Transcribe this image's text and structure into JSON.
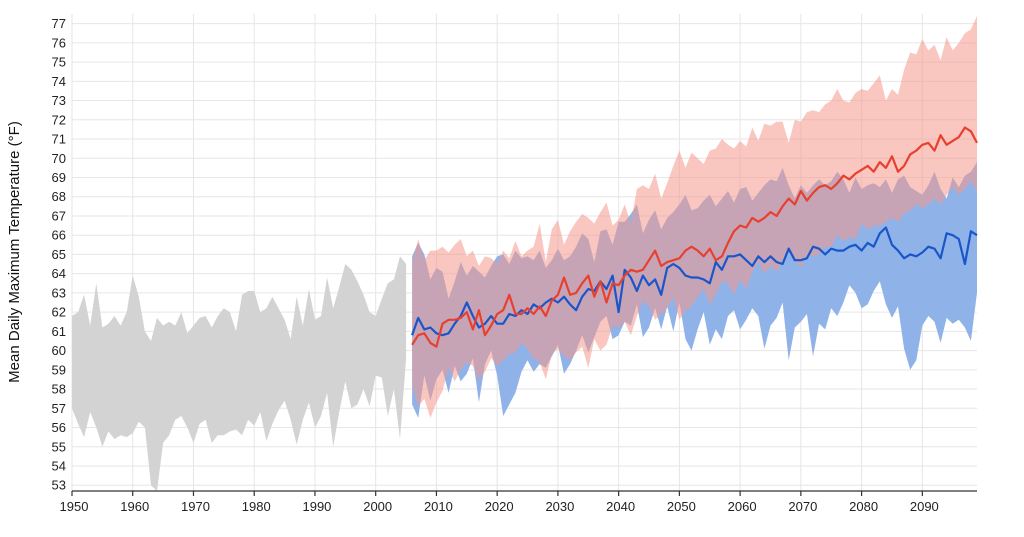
{
  "chart_data": {
    "type": "area",
    "ylabel": "Mean Daily Maximum Temperature (°F)",
    "xlim": [
      1950,
      2099
    ],
    "ylim": [
      52.7,
      77.5
    ],
    "xticks": [
      1950,
      1960,
      1970,
      1980,
      1990,
      2000,
      2010,
      2020,
      2030,
      2040,
      2050,
      2060,
      2070,
      2080,
      2090
    ],
    "yticks": [
      53,
      54,
      55,
      56,
      57,
      58,
      59,
      60,
      61,
      62,
      63,
      64,
      65,
      66,
      67,
      68,
      69,
      70,
      71,
      72,
      73,
      74,
      75,
      76,
      77
    ],
    "grid": true,
    "colors": {
      "observed_band": "#d3d3d3",
      "lower_band": "#8fb3e8",
      "lower_line": "#1a56c9",
      "higher_band": "#f4978c",
      "higher_line": "#e8402f",
      "overlap_blend": 0.55
    },
    "series": [
      {
        "role": "observed_range",
        "x": [
          1950,
          1951,
          1952,
          1953,
          1954,
          1955,
          1956,
          1957,
          1958,
          1959,
          1960,
          1961,
          1962,
          1963,
          1964,
          1965,
          1966,
          1967,
          1968,
          1969,
          1970,
          1971,
          1972,
          1973,
          1974,
          1975,
          1976,
          1977,
          1978,
          1979,
          1980,
          1981,
          1982,
          1983,
          1984,
          1985,
          1986,
          1987,
          1988,
          1989,
          1990,
          1991,
          1992,
          1993,
          1994,
          1995,
          1996,
          1997,
          1998,
          1999,
          2000,
          2001,
          2002,
          2003,
          2004,
          2005
        ],
        "low": [
          57,
          56.2,
          55.5,
          56.8,
          56,
          55,
          55.8,
          55.4,
          55.6,
          55.5,
          55.7,
          56.3,
          56,
          53,
          52.7,
          55.2,
          55.6,
          56.4,
          56.6,
          56,
          55.2,
          56.2,
          56.4,
          55.2,
          55.6,
          55.6,
          55.8,
          55.9,
          55.6,
          56.4,
          56.1,
          56.8,
          55.3,
          56.2,
          56.9,
          57.4,
          56.4,
          55.1,
          56.4,
          57.3,
          56,
          56.6,
          57.8,
          55,
          56.8,
          58.4,
          57,
          57.2,
          58,
          57.1,
          58.7,
          58.6,
          56.6,
          58,
          55.4,
          59.6
        ],
        "high": [
          61.8,
          62,
          62.9,
          61.3,
          63.5,
          61.2,
          61.4,
          61.8,
          61.3,
          62,
          63.9,
          62.8,
          61,
          60.5,
          61.7,
          61.3,
          61.5,
          61.3,
          62,
          60.9,
          61.3,
          61.7,
          61.8,
          61.2,
          61.8,
          62.2,
          62,
          61,
          62.9,
          63.1,
          63.1,
          62,
          62.2,
          62.8,
          62.2,
          61.6,
          60.6,
          62.8,
          61.3,
          63.2,
          61.6,
          61.8,
          63.8,
          62.2,
          63.3,
          64.5,
          64.2,
          63.6,
          62.9,
          62,
          61.8,
          62.7,
          63.5,
          63.7,
          64.9,
          64.5
        ]
      },
      {
        "role": "lower_emissions",
        "x": [
          2006,
          2007,
          2008,
          2009,
          2010,
          2011,
          2012,
          2013,
          2014,
          2015,
          2016,
          2017,
          2018,
          2019,
          2020,
          2021,
          2022,
          2023,
          2024,
          2025,
          2026,
          2027,
          2028,
          2029,
          2030,
          2031,
          2032,
          2033,
          2034,
          2035,
          2036,
          2037,
          2038,
          2039,
          2040,
          2041,
          2042,
          2043,
          2044,
          2045,
          2046,
          2047,
          2048,
          2049,
          2050,
          2051,
          2052,
          2053,
          2054,
          2055,
          2056,
          2057,
          2058,
          2059,
          2060,
          2061,
          2062,
          2063,
          2064,
          2065,
          2066,
          2067,
          2068,
          2069,
          2070,
          2071,
          2072,
          2073,
          2074,
          2075,
          2076,
          2077,
          2078,
          2079,
          2080,
          2081,
          2082,
          2083,
          2084,
          2085,
          2086,
          2087,
          2088,
          2089,
          2090,
          2091,
          2092,
          2093,
          2094,
          2095,
          2096,
          2097,
          2098,
          2099
        ],
        "low": [
          57.2,
          56.5,
          58.7,
          57.4,
          58.5,
          59,
          57.8,
          59.2,
          58.4,
          58.8,
          59.6,
          57.3,
          59.3,
          60,
          58.7,
          56.6,
          57.2,
          57.8,
          58.9,
          59.5,
          58.9,
          59.3,
          59.1,
          59.7,
          60.3,
          58.8,
          59.3,
          60,
          60.8,
          59.9,
          60.7,
          61.5,
          61.8,
          60.6,
          60.8,
          61.5,
          61.3,
          62.4,
          60.7,
          61.2,
          62.2,
          61.1,
          62.3,
          61,
          62.5,
          60.6,
          60,
          61.1,
          62,
          60.3,
          61.1,
          60.6,
          61.8,
          62.1,
          61.1,
          61.6,
          62.2,
          61.8,
          60.1,
          61.3,
          61.7,
          62.5,
          59.5,
          61.2,
          61.5,
          61.9,
          59.7,
          61.4,
          61.1,
          62.2,
          61.8,
          62.5,
          63.4,
          63,
          62.2,
          62.4,
          63.1,
          63.6,
          62.4,
          61.7,
          62.3,
          60.1,
          59,
          59.5,
          61.3,
          61.8,
          61.5,
          60.4,
          61.7,
          61.4,
          61.6,
          61.2,
          60.5,
          63
        ],
        "high": [
          64.9,
          65.6,
          65,
          63.7,
          64.3,
          64.1,
          62.7,
          63.6,
          64.6,
          63.9,
          64.4,
          64.1,
          63.8,
          64.4,
          64.9,
          65,
          64.5,
          65.2,
          64.8,
          64.9,
          64.7,
          65.2,
          64.3,
          64.7,
          65.3,
          64.7,
          64.9,
          65.4,
          66.1,
          65.8,
          64.6,
          66.2,
          66.3,
          65.5,
          66.7,
          66.7,
          67.1,
          67.6,
          66.1,
          66.8,
          67.3,
          66.3,
          66.9,
          67.2,
          67.6,
          68.1,
          67.3,
          67.4,
          67.8,
          68.1,
          67.5,
          67.9,
          68.3,
          67.7,
          68.4,
          68.5,
          67.8,
          68.2,
          68.6,
          68.9,
          68.8,
          69.5,
          68.6,
          67.9,
          68.6,
          68.2,
          68.6,
          68.9,
          68.6,
          68.8,
          69.3,
          68.9,
          68.2,
          69,
          68.4,
          68.6,
          68.7,
          68.5,
          68.9,
          68.2,
          68.9,
          69.1,
          68.5,
          68.3,
          68.1,
          68.6,
          69.3,
          68.4,
          67.9,
          69,
          68.5,
          69.1,
          69.3,
          69.8
        ],
        "mean": [
          60.8,
          61.7,
          61.1,
          61.2,
          60.9,
          60.8,
          60.9,
          61.4,
          61.8,
          62.5,
          61.8,
          61.2,
          61.4,
          61.8,
          61.4,
          61.4,
          61.9,
          61.8,
          62.1,
          61.9,
          62.4,
          62.2,
          62.5,
          62.7,
          62.5,
          62.8,
          62.4,
          62.1,
          62.8,
          63.2,
          63.1,
          63.6,
          63.2,
          63.9,
          62,
          64.2,
          63.8,
          63.1,
          63.9,
          63.4,
          63.7,
          62.9,
          64.3,
          64.5,
          64.3,
          63.9,
          63.8,
          63.8,
          63.7,
          63.5,
          64.6,
          64.2,
          64.9,
          64.9,
          65,
          64.7,
          64.4,
          64.9,
          64.6,
          64.9,
          64.6,
          64.5,
          65.3,
          64.7,
          64.7,
          64.8,
          65.4,
          65.3,
          65,
          65.3,
          65.2,
          65.2,
          65.4,
          65.5,
          65.2,
          65.6,
          65.4,
          66.1,
          66.4,
          65.5,
          65.2,
          64.8,
          65,
          64.9,
          65.1,
          65.4,
          65.3,
          64.8,
          66.1,
          66,
          65.8,
          64.5,
          66.2,
          66
        ],
        "name": ""
      },
      {
        "role": "higher_emissions",
        "x": [
          2006,
          2007,
          2008,
          2009,
          2010,
          2011,
          2012,
          2013,
          2014,
          2015,
          2016,
          2017,
          2018,
          2019,
          2020,
          2021,
          2022,
          2023,
          2024,
          2025,
          2026,
          2027,
          2028,
          2029,
          2030,
          2031,
          2032,
          2033,
          2034,
          2035,
          2036,
          2037,
          2038,
          2039,
          2040,
          2041,
          2042,
          2043,
          2044,
          2045,
          2046,
          2047,
          2048,
          2049,
          2050,
          2051,
          2052,
          2053,
          2054,
          2055,
          2056,
          2057,
          2058,
          2059,
          2060,
          2061,
          2062,
          2063,
          2064,
          2065,
          2066,
          2067,
          2068,
          2069,
          2070,
          2071,
          2072,
          2073,
          2074,
          2075,
          2076,
          2077,
          2078,
          2079,
          2080,
          2081,
          2082,
          2083,
          2084,
          2085,
          2086,
          2087,
          2088,
          2089,
          2090,
          2091,
          2092,
          2093,
          2094,
          2095,
          2096,
          2097,
          2098,
          2099
        ],
        "low": [
          58.2,
          57.1,
          57.5,
          56.5,
          57.3,
          57.9,
          59.1,
          58.4,
          59,
          59.4,
          59.2,
          58.5,
          58.9,
          59.6,
          59.2,
          59.5,
          59.8,
          59.9,
          60.4,
          60.1,
          59.6,
          59.4,
          58.5,
          59.8,
          60.1,
          59.7,
          59.5,
          59.9,
          60.2,
          59.1,
          60.6,
          60,
          60.3,
          61.3,
          61.2,
          61.5,
          60.8,
          61.8,
          62.6,
          62.3,
          61.6,
          61.9,
          62.2,
          62.8,
          61.6,
          62.1,
          62.3,
          62.8,
          63.2,
          62.4,
          62.9,
          63.6,
          63.5,
          62.9,
          63.7,
          63.2,
          64.1,
          64.6,
          64,
          64.4,
          64.1,
          64.6,
          65.1,
          64.7,
          64.3,
          65,
          64.9,
          65,
          65.4,
          65.4,
          66,
          65.7,
          65.9,
          65.8,
          66.6,
          66.3,
          66.5,
          66.5,
          66.7,
          66.9,
          66.7,
          67.1,
          67.3,
          67.6,
          67.4,
          67.6,
          67.9,
          67.6,
          68.1,
          68.5,
          68.1,
          68.4,
          68.8,
          68.3
        ],
        "high": [
          64.6,
          65.8,
          64.7,
          65.2,
          65.2,
          65.4,
          65.1,
          65.5,
          65.8,
          64.9,
          65.2,
          64.4,
          64.9,
          64.8,
          64.5,
          65.2,
          64.8,
          65.7,
          64.9,
          65.2,
          65.4,
          66.6,
          64.6,
          66.3,
          66.8,
          65.5,
          66.2,
          66.7,
          67.1,
          66.9,
          66.6,
          67.2,
          67.7,
          66.5,
          66.8,
          67.6,
          66.6,
          68.4,
          68.6,
          68.4,
          69.2,
          67.9,
          68.7,
          69.6,
          70.4,
          69.5,
          70.3,
          70,
          69.7,
          70.4,
          70.5,
          71,
          70.7,
          70.5,
          70.9,
          70.6,
          71.6,
          70.9,
          71.8,
          71.7,
          71.9,
          71.9,
          70.8,
          72,
          71.9,
          72.4,
          72.5,
          72.4,
          72.8,
          73,
          73.6,
          73,
          72.9,
          73.4,
          73.6,
          73.5,
          73.9,
          74.3,
          73,
          73.6,
          73.3,
          74.6,
          75.5,
          75.4,
          76.2,
          75.6,
          75.9,
          75.1,
          76.3,
          75.6,
          76,
          76.5,
          76.7,
          77.4
        ],
        "mean": [
          60.3,
          60.8,
          60.9,
          60.4,
          60.2,
          61.4,
          61.6,
          61.6,
          61.7,
          62,
          61.1,
          62.1,
          60.8,
          61.3,
          61.9,
          62.1,
          62.9,
          61.9,
          61.9,
          62.2,
          61.9,
          62.3,
          61.8,
          62.6,
          62.9,
          63.8,
          62.9,
          63,
          63.5,
          63.9,
          62.8,
          63.6,
          62.5,
          63.5,
          63.4,
          63.9,
          64.2,
          64.1,
          64.2,
          64.7,
          65.2,
          64.4,
          64.6,
          64.7,
          64.8,
          65.2,
          65.4,
          65.2,
          64.9,
          65.3,
          64.7,
          64.9,
          65.6,
          66.2,
          66.5,
          66.4,
          66.9,
          66.7,
          66.9,
          67.2,
          67,
          67.5,
          67.9,
          67.6,
          68.3,
          67.8,
          68.2,
          68.5,
          68.6,
          68.4,
          68.7,
          69.1,
          68.9,
          69.2,
          69.4,
          69.6,
          69.3,
          69.8,
          69.5,
          70.1,
          69.3,
          69.6,
          70.2,
          70.4,
          70.7,
          70.8,
          70.4,
          71.2,
          70.7,
          70.9,
          71.1,
          71.6,
          71.4,
          70.8
        ],
        "name": ""
      }
    ]
  }
}
